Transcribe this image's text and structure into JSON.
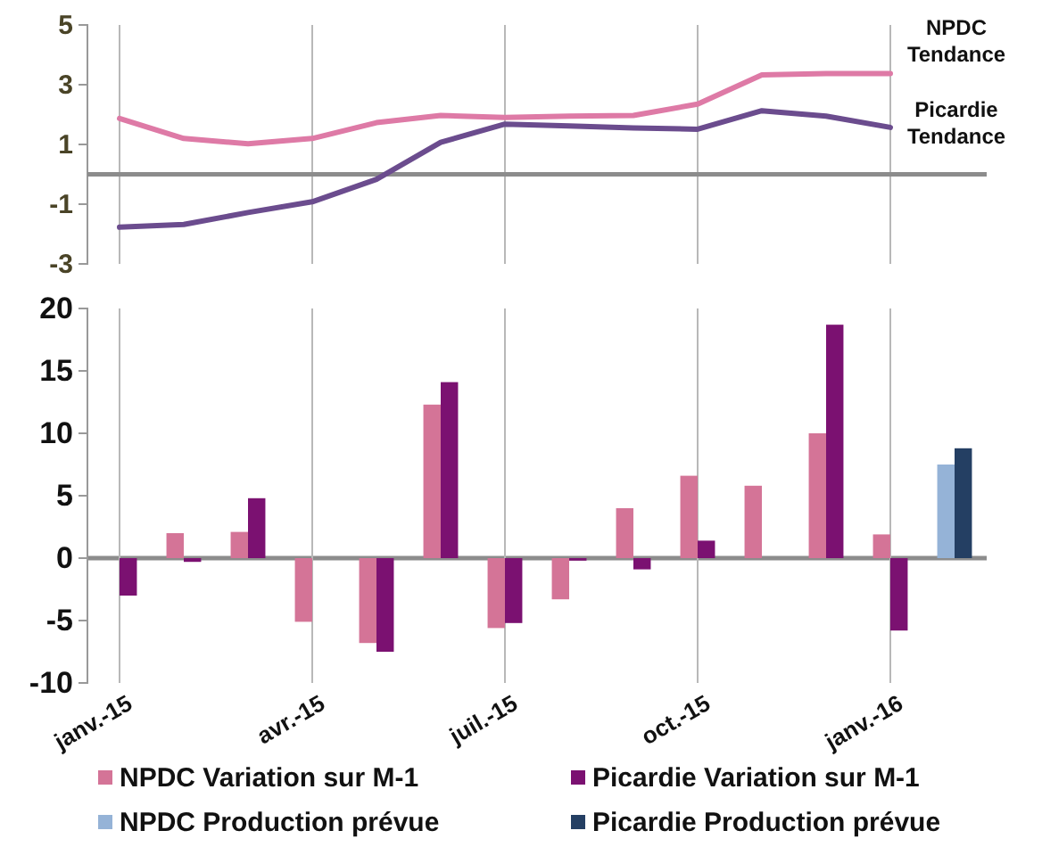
{
  "chart_data": [
    {
      "type": "line",
      "categories": [
        null,
        null,
        null,
        null,
        null,
        null,
        null,
        null,
        null,
        null,
        null,
        null,
        null,
        null
      ],
      "ylim": [
        -3,
        5
      ],
      "yticks": [
        -3,
        -1,
        1,
        3,
        5
      ],
      "grid": "x",
      "tick_labels": "y",
      "legend": false,
      "series": [
        {
          "name": "NPDC Tendance",
          "color": "#de7aa6",
          "values": [
            1.87,
            1.2,
            1.02,
            1.2,
            1.73,
            1.97,
            1.9,
            1.95,
            1.97,
            2.35,
            3.33,
            3.37,
            3.37,
            null
          ]
        },
        {
          "name": "Picardie Tendance",
          "color": "#6b4c8e",
          "values": [
            -1.77,
            -1.68,
            -1.28,
            -0.92,
            -0.17,
            1.07,
            1.68,
            1.62,
            1.55,
            1.51,
            2.13,
            1.95,
            1.57,
            null
          ]
        }
      ]
    },
    {
      "type": "bar",
      "categories": [
        "janv.-15",
        null,
        null,
        "avr.-15",
        null,
        null,
        "juil.-15",
        null,
        null,
        "oct.-15",
        null,
        null,
        "janv.-16",
        null
      ],
      "ylim": [
        -10,
        20
      ],
      "yticks": [
        -10,
        -5,
        0,
        5,
        10,
        15,
        20
      ],
      "grid": "x",
      "legend": "bottom",
      "series": [
        {
          "name": "NPDC Variation sur M-1",
          "color": "#d47497",
          "values": [
            null,
            2.0,
            2.1,
            -5.1,
            -6.8,
            12.3,
            -5.6,
            -3.3,
            4.0,
            6.6,
            5.8,
            10.0,
            1.9,
            null
          ]
        },
        {
          "name": "Picardie Variation sur M-1",
          "color": "#7b1171",
          "values": [
            -3.0,
            -0.3,
            4.8,
            null,
            -7.5,
            14.1,
            -5.2,
            -0.2,
            -0.9,
            1.4,
            null,
            18.7,
            -5.8,
            null
          ]
        },
        {
          "name": "NPDC Production prévue",
          "color": "#95b3d7",
          "values": [
            null,
            null,
            null,
            null,
            null,
            null,
            null,
            null,
            null,
            null,
            null,
            null,
            null,
            7.5
          ]
        },
        {
          "name": "Picardie Production prévue",
          "color": "#243f63",
          "values": [
            null,
            null,
            null,
            null,
            null,
            null,
            null,
            null,
            null,
            null,
            null,
            null,
            null,
            8.8
          ]
        }
      ]
    }
  ]
}
